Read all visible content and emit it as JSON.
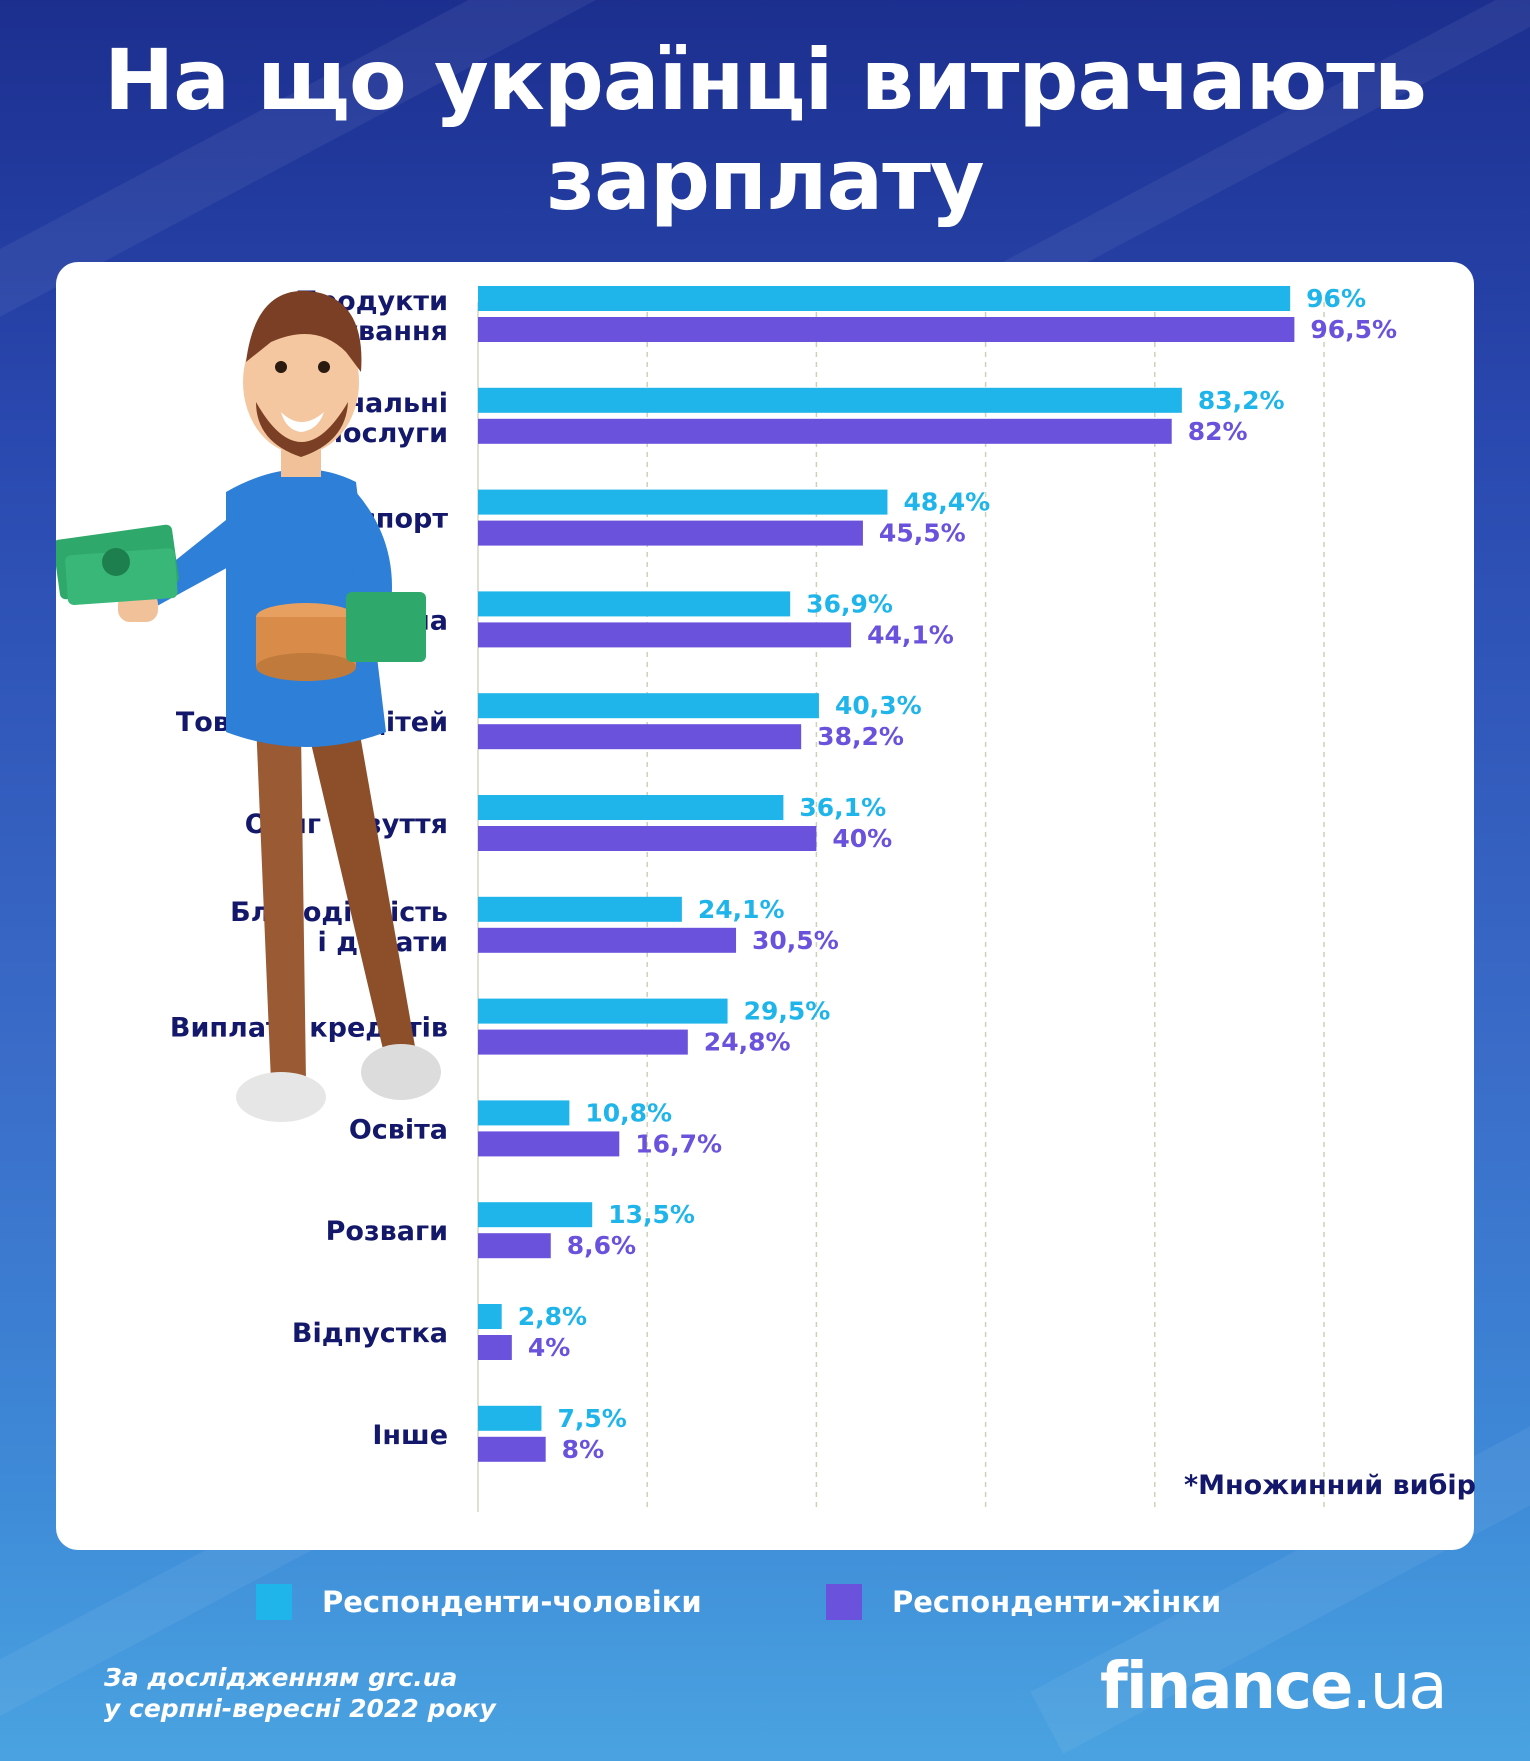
{
  "title": {
    "line1": "На що українці витрачають",
    "line2": "зарплату"
  },
  "colors": {
    "men": "#1fb5ea",
    "women": "#6a52dc",
    "label": "#14186b"
  },
  "chart_data": {
    "type": "bar",
    "orientation": "horizontal",
    "categories": [
      [
        "Продукти",
        "харчування"
      ],
      [
        "Комунальні",
        "послуги"
      ],
      [
        "Транспорт"
      ],
      [
        "Медицина"
      ],
      [
        "Товари для дітей"
      ],
      [
        "Одяг і взуття"
      ],
      [
        "Благодійність",
        "і донати"
      ],
      [
        "Виплата кредитів"
      ],
      [
        "Освіта"
      ],
      [
        "Розваги"
      ],
      [
        "Відпустка"
      ],
      [
        "Інше"
      ]
    ],
    "series": [
      {
        "name": "Респонденти-чоловіки",
        "values": [
          96,
          83.2,
          48.4,
          36.9,
          40.3,
          36.1,
          24.1,
          29.5,
          10.8,
          13.5,
          2.8,
          7.5
        ],
        "labels": [
          "96%",
          "83,2%",
          "48,4%",
          "36,9%",
          "40,3%",
          "36,1%",
          "24,1%",
          "29,5%",
          "10,8%",
          "13,5%",
          "2,8%",
          "7,5%"
        ]
      },
      {
        "name": "Респонденти-жінки",
        "values": [
          96.5,
          82,
          45.5,
          44.1,
          38.2,
          40,
          30.5,
          24.8,
          16.7,
          8.6,
          4,
          8
        ],
        "labels": [
          "96,5%",
          "82%",
          "45,5%",
          "44,1%",
          "38,2%",
          "40%",
          "30,5%",
          "24,8%",
          "16,7%",
          "8,6%",
          "4%",
          "8%"
        ]
      }
    ],
    "xlim": [
      0,
      100
    ],
    "grid": true,
    "legend": "bottom"
  },
  "footnote": "*Множинний вибір",
  "legend": {
    "men": "Респонденти-чоловіки",
    "women": "Респонденти-жінки"
  },
  "source": {
    "line1": "За дослідженням grc.ua",
    "line2": "у серпні-вересні 2022 року"
  },
  "logo": {
    "main": "finance",
    "suffix": ".ua"
  }
}
